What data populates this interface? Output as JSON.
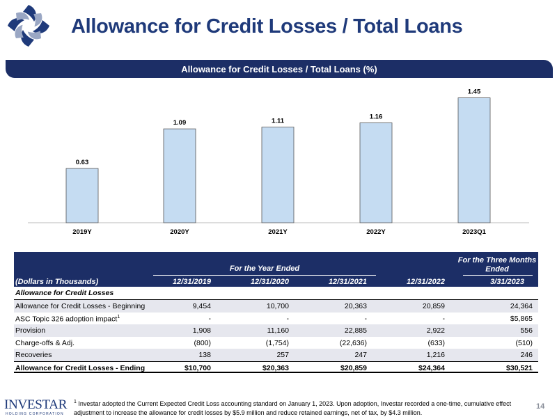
{
  "page": {
    "title": "Allowance for Credit Losses / Total Loans",
    "page_number": "14"
  },
  "colors": {
    "navy": "#1c2e66",
    "title_blue": "#1f3a7a",
    "bar_fill": "#c5dcf2",
    "bar_stroke": "#555555"
  },
  "chart_data": {
    "type": "bar",
    "title": "Allowance for Credit Losses / Total Loans (%)",
    "categories": [
      "2019Y",
      "2020Y",
      "2021Y",
      "2022Y",
      "2023Q1"
    ],
    "values": [
      0.63,
      1.09,
      1.11,
      1.16,
      1.45
    ],
    "labels": [
      "0.63",
      "1.09",
      "1.11",
      "1.16",
      "1.45"
    ],
    "xlabel": "",
    "ylabel": "",
    "ylim": [
      0,
      1.6
    ],
    "grid": false,
    "legend": "none"
  },
  "table": {
    "period_header": "For the Year Ended",
    "quarter_header_line1": "For the Three Months",
    "quarter_header_line2": "Ended",
    "units_label": "(Dollars in Thousands)",
    "columns": [
      "12/31/2019",
      "12/31/2020",
      "12/31/2021",
      "12/31/2022",
      "3/31/2023"
    ],
    "section_label": "Allowance for Credit Losses",
    "rows": [
      {
        "label": "Allowance for Credit Losses - Beginning",
        "sup": "",
        "values": [
          "9,454",
          "10,700",
          "20,363",
          "20,859",
          "24,364"
        ]
      },
      {
        "label": "ASC Topic 326 adoption impact",
        "sup": "1",
        "values": [
          "-",
          "-",
          "-",
          "-",
          "$5,865"
        ]
      },
      {
        "label": "Provision",
        "sup": "",
        "values": [
          "1,908",
          "11,160",
          "22,885",
          "2,922",
          "556"
        ]
      },
      {
        "label": "Charge-offs & Adj.",
        "sup": "",
        "values": [
          "(800)",
          "(1,754)",
          "(22,636)",
          "(633)",
          "(510)"
        ]
      },
      {
        "label": "Recoveries",
        "sup": "",
        "values": [
          "138",
          "257",
          "247",
          "1,216",
          "246"
        ]
      }
    ],
    "total": {
      "label": "Allowance for Credit Losses - Ending",
      "values": [
        "$10,700",
        "$20,363",
        "$20,859",
        "$24,364",
        "$30,521"
      ]
    }
  },
  "footnote": {
    "marker": "1",
    "text": "Investar adopted the Current Expected Credit Loss accounting standard on January 1, 2023. Upon adoption, Investar recorded a one-time, cumulative effect adjustment to increase the allowance for credit losses by $5.9 million and reduce retained earnings, net of tax, by $4.3 million."
  },
  "brand": {
    "name": "INVESTAR",
    "subtitle": "HOLDING CORPORATION"
  }
}
